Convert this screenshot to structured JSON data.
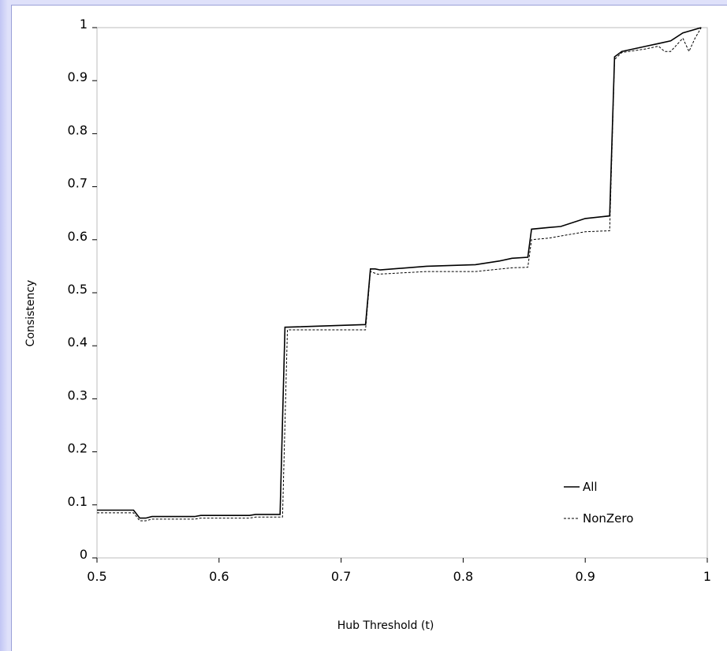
{
  "chart_data": {
    "type": "line",
    "title": "",
    "xlabel": "Hub Threshold (t)",
    "ylabel": "Consistency",
    "xlim": [
      0.5,
      1
    ],
    "ylim": [
      0,
      1
    ],
    "x_ticks": [
      0.5,
      0.6,
      0.7,
      0.8,
      0.9,
      1
    ],
    "x_tick_labels": [
      "0.5",
      "0.6",
      "0.7",
      "0.8",
      "0.9",
      "1"
    ],
    "y_ticks": [
      0,
      0.1,
      0.2,
      0.3,
      0.4,
      0.5,
      0.6,
      0.7,
      0.8,
      0.9,
      1
    ],
    "y_tick_labels": [
      "0",
      "0.1",
      "0.2",
      "0.3",
      "0.4",
      "0.5",
      "0.6",
      "0.7",
      "0.8",
      "0.9",
      "1"
    ],
    "grid": false,
    "legend_position": "bottom-right",
    "series": [
      {
        "name": "All",
        "style": "solid",
        "color": "#000000",
        "points": [
          [
            0.5,
            0.09
          ],
          [
            0.53,
            0.09
          ],
          [
            0.535,
            0.075
          ],
          [
            0.54,
            0.075
          ],
          [
            0.545,
            0.078
          ],
          [
            0.58,
            0.078
          ],
          [
            0.585,
            0.08
          ],
          [
            0.625,
            0.08
          ],
          [
            0.63,
            0.082
          ],
          [
            0.65,
            0.082
          ],
          [
            0.654,
            0.435
          ],
          [
            0.72,
            0.44
          ],
          [
            0.724,
            0.545
          ],
          [
            0.728,
            0.545
          ],
          [
            0.732,
            0.543
          ],
          [
            0.77,
            0.55
          ],
          [
            0.81,
            0.553
          ],
          [
            0.83,
            0.56
          ],
          [
            0.84,
            0.565
          ],
          [
            0.853,
            0.567
          ],
          [
            0.856,
            0.62
          ],
          [
            0.87,
            0.623
          ],
          [
            0.88,
            0.625
          ],
          [
            0.9,
            0.64
          ],
          [
            0.92,
            0.645
          ],
          [
            0.924,
            0.945
          ],
          [
            0.93,
            0.955
          ],
          [
            0.95,
            0.965
          ],
          [
            0.96,
            0.97
          ],
          [
            0.97,
            0.975
          ],
          [
            0.98,
            0.99
          ],
          [
            0.995,
            1.0
          ]
        ]
      },
      {
        "name": "NonZero",
        "style": "dashed",
        "color": "#000000",
        "points": [
          [
            0.5,
            0.085
          ],
          [
            0.53,
            0.085
          ],
          [
            0.535,
            0.07
          ],
          [
            0.54,
            0.07
          ],
          [
            0.545,
            0.073
          ],
          [
            0.58,
            0.073
          ],
          [
            0.585,
            0.075
          ],
          [
            0.625,
            0.075
          ],
          [
            0.63,
            0.077
          ],
          [
            0.652,
            0.077
          ],
          [
            0.656,
            0.43
          ],
          [
            0.72,
            0.43
          ],
          [
            0.724,
            0.54
          ],
          [
            0.73,
            0.535
          ],
          [
            0.77,
            0.54
          ],
          [
            0.81,
            0.54
          ],
          [
            0.84,
            0.547
          ],
          [
            0.853,
            0.548
          ],
          [
            0.856,
            0.6
          ],
          [
            0.87,
            0.603
          ],
          [
            0.88,
            0.607
          ],
          [
            0.9,
            0.615
          ],
          [
            0.92,
            0.617
          ],
          [
            0.924,
            0.94
          ],
          [
            0.93,
            0.953
          ],
          [
            0.95,
            0.96
          ],
          [
            0.96,
            0.965
          ],
          [
            0.965,
            0.955
          ],
          [
            0.97,
            0.955
          ],
          [
            0.98,
            0.98
          ],
          [
            0.985,
            0.955
          ],
          [
            0.99,
            0.98
          ],
          [
            0.995,
            1.0
          ]
        ]
      }
    ]
  }
}
